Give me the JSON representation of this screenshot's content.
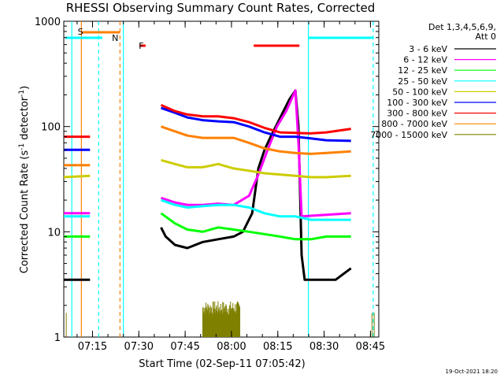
{
  "chart_data": {
    "type": "line",
    "title": "RHESSI Observing Summary Count Rates, Corrected",
    "xlabel": "Start Time (02-Sep-11 07:05:42)",
    "ylabel_main": "Corrected Count Rate (s",
    "ylabel_sup1": "-1",
    "ylabel_mid": " detector",
    "ylabel_sup2": "-1",
    "ylabel_end": ")",
    "yscale": "log",
    "ylim": [
      1,
      1000
    ],
    "xlim_minutes": [
      0,
      102
    ],
    "x_ticks": [
      {
        "label": "07:15",
        "minute": 9.3
      },
      {
        "label": "07:30",
        "minute": 24.3
      },
      {
        "label": "07:45",
        "minute": 39.3
      },
      {
        "label": "08:00",
        "minute": 54.3
      },
      {
        "label": "08:15",
        "minute": 69.3
      },
      {
        "label": "08:30",
        "minute": 84.3
      },
      {
        "label": "08:45",
        "minute": 99.3
      }
    ],
    "y_ticks": [
      {
        "label": "1",
        "value": 1
      },
      {
        "label": "10",
        "value": 10
      },
      {
        "label": "100",
        "value": 100
      },
      {
        "label": "1000",
        "value": 1000
      }
    ],
    "legend_header": [
      "Det 1,3,4,5,6,9,",
      "Att 0"
    ],
    "legend_position": "right",
    "series": [
      {
        "name": "3 - 6 keV",
        "color": "#000000",
        "points": [
          [
            0,
            3.5
          ],
          [
            8.5,
            3.5
          ],
          [
            8.5,
            null
          ],
          [
            31.5,
            null
          ],
          [
            31.5,
            11
          ],
          [
            33,
            9
          ],
          [
            36,
            7.5
          ],
          [
            40,
            7
          ],
          [
            45,
            8
          ],
          [
            50,
            8.5
          ],
          [
            55,
            9
          ],
          [
            58,
            10
          ],
          [
            61,
            15
          ],
          [
            63,
            40
          ],
          [
            65,
            60
          ],
          [
            67,
            80
          ],
          [
            70,
            120
          ],
          [
            73,
            180
          ],
          [
            75,
            220
          ],
          [
            76,
            100
          ],
          [
            77,
            6
          ],
          [
            78,
            3.5
          ],
          [
            85,
            3.5
          ],
          [
            88,
            3.5
          ],
          [
            93,
            4.5
          ],
          [
            93,
            null
          ]
        ]
      },
      {
        "name": "6 - 12 keV",
        "color": "#ff00ff",
        "points": [
          [
            0,
            15
          ],
          [
            8.5,
            15
          ],
          [
            8.5,
            null
          ],
          [
            31.5,
            null
          ],
          [
            31.5,
            21
          ],
          [
            36,
            19
          ],
          [
            40,
            18
          ],
          [
            45,
            18
          ],
          [
            50,
            18.5
          ],
          [
            55,
            18
          ],
          [
            60,
            22
          ],
          [
            63,
            35
          ],
          [
            66,
            60
          ],
          [
            69,
            100
          ],
          [
            72,
            140
          ],
          [
            75,
            220
          ],
          [
            76,
            70
          ],
          [
            77,
            14
          ],
          [
            85,
            14.5
          ],
          [
            93,
            15
          ]
        ]
      },
      {
        "name": "12 - 25 keV",
        "color": "#00ff00",
        "points": [
          [
            0,
            9
          ],
          [
            8.5,
            9
          ],
          [
            8.5,
            null
          ],
          [
            31.5,
            null
          ],
          [
            31.5,
            15
          ],
          [
            36,
            12
          ],
          [
            40,
            10.5
          ],
          [
            45,
            10
          ],
          [
            50,
            11
          ],
          [
            55,
            10.5
          ],
          [
            60,
            10
          ],
          [
            65,
            9.5
          ],
          [
            70,
            9
          ],
          [
            75,
            8.5
          ],
          [
            80,
            8.5
          ],
          [
            85,
            9
          ],
          [
            93,
            9
          ]
        ]
      },
      {
        "name": "25 - 50 keV",
        "color": "#00ffff",
        "points": [
          [
            0,
            14
          ],
          [
            8.5,
            14
          ],
          [
            8.5,
            null
          ],
          [
            31.5,
            null
          ],
          [
            31.5,
            20
          ],
          [
            36,
            18
          ],
          [
            40,
            17
          ],
          [
            45,
            17.5
          ],
          [
            50,
            18
          ],
          [
            55,
            18
          ],
          [
            60,
            17
          ],
          [
            65,
            15
          ],
          [
            70,
            14
          ],
          [
            75,
            14
          ],
          [
            80,
            13
          ],
          [
            85,
            13
          ],
          [
            93,
            13
          ]
        ]
      },
      {
        "name": "50 - 100 keV",
        "color": "#cccc00",
        "points": [
          [
            0,
            33
          ],
          [
            8.5,
            34
          ],
          [
            8.5,
            null
          ],
          [
            31.5,
            null
          ],
          [
            31.5,
            48
          ],
          [
            36,
            44
          ],
          [
            40,
            41
          ],
          [
            45,
            41
          ],
          [
            50,
            44
          ],
          [
            55,
            40
          ],
          [
            60,
            38
          ],
          [
            65,
            36
          ],
          [
            70,
            35
          ],
          [
            75,
            34
          ],
          [
            80,
            33
          ],
          [
            85,
            33
          ],
          [
            93,
            34
          ]
        ]
      },
      {
        "name": "100 - 300 keV",
        "color": "#0000ff",
        "points": [
          [
            0,
            60
          ],
          [
            8.5,
            60
          ],
          [
            8.5,
            null
          ],
          [
            31.5,
            null
          ],
          [
            31.5,
            150
          ],
          [
            36,
            135
          ],
          [
            40,
            122
          ],
          [
            45,
            115
          ],
          [
            50,
            112
          ],
          [
            55,
            110
          ],
          [
            60,
            100
          ],
          [
            65,
            88
          ],
          [
            70,
            80
          ],
          [
            75,
            80
          ],
          [
            80,
            77
          ],
          [
            85,
            74
          ],
          [
            93,
            73
          ]
        ]
      },
      {
        "name": "300 - 800 keV",
        "color": "#ff0000",
        "points": [
          [
            0,
            80
          ],
          [
            8.5,
            80
          ],
          [
            8.5,
            null
          ],
          [
            31.5,
            null
          ],
          [
            31.5,
            160
          ],
          [
            36,
            140
          ],
          [
            40,
            130
          ],
          [
            45,
            125
          ],
          [
            50,
            125
          ],
          [
            55,
            120
          ],
          [
            60,
            110
          ],
          [
            65,
            97
          ],
          [
            70,
            88
          ],
          [
            75,
            87
          ],
          [
            80,
            86
          ],
          [
            85,
            88
          ],
          [
            93,
            95
          ]
        ]
      },
      {
        "name": "800 - 7000 keV",
        "color": "#ff8000",
        "points": [
          [
            0,
            43
          ],
          [
            8.5,
            43
          ],
          [
            8.5,
            null
          ],
          [
            31.5,
            null
          ],
          [
            31.5,
            100
          ],
          [
            36,
            90
          ],
          [
            40,
            82
          ],
          [
            45,
            78
          ],
          [
            50,
            78
          ],
          [
            55,
            78
          ],
          [
            60,
            70
          ],
          [
            65,
            62
          ],
          [
            70,
            58
          ],
          [
            75,
            56
          ],
          [
            80,
            55
          ],
          [
            85,
            56
          ],
          [
            93,
            58
          ]
        ]
      },
      {
        "name": "7000 - 15000 keV",
        "color": "#808000",
        "points": []
      }
    ],
    "background_spikes_color": "#808000",
    "annotations": [
      {
        "label": "S",
        "color": "#ff8000"
      },
      {
        "label": "N",
        "color": "#00ffff"
      },
      {
        "label": "F",
        "color": "#ff0000"
      }
    ],
    "grid": false
  },
  "footer": {
    "timestamp": "19-Oct-2021 18:20"
  }
}
